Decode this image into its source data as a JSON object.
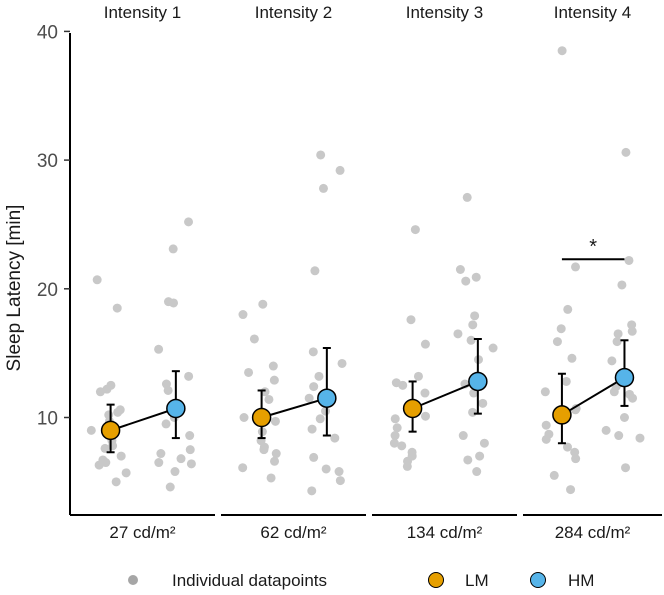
{
  "colors": {
    "lm": "#E69F00",
    "hm": "#56B4E9",
    "individual": "#C8C8C8",
    "legend_individual": "#A6A6A6",
    "line": "#000000"
  },
  "chart_data": {
    "type": "scatter",
    "ylabel": "Sleep Latency [min]",
    "ylim": [
      0,
      40
    ],
    "yticks": [
      10,
      20,
      30,
      40
    ],
    "grid": false,
    "legend_position": "bottom",
    "legend": {
      "individual_label": "Individual datapoints",
      "lm_label": "LM",
      "hm_label": "HM"
    },
    "panels": [
      {
        "title": "Intensity 1",
        "xlabel": "27 cd/m²",
        "lm": {
          "mean": 9.0,
          "lower": 7.3,
          "upper": 11.0
        },
        "hm": {
          "mean": 10.7,
          "lower": 8.4,
          "upper": 13.6
        },
        "significance": "",
        "individual_lm": [
          20.7,
          18.5,
          12.5,
          12.2,
          12.0,
          10.6,
          10.4,
          10.2,
          9.7,
          9.6,
          9.0,
          8.2,
          7.8,
          7.6,
          7.0,
          6.7,
          6.5,
          6.3,
          5.7,
          5.0
        ],
        "individual_hm": [
          25.2,
          23.1,
          19.0,
          18.9,
          15.3,
          13.2,
          12.6,
          12.1,
          11.0,
          10.5,
          10.0,
          9.5,
          8.6,
          7.5,
          7.2,
          6.8,
          6.5,
          6.4,
          5.8,
          4.6
        ]
      },
      {
        "title": "Intensity 2",
        "xlabel": "62 cd/m²",
        "lm": {
          "mean": 10.0,
          "lower": 8.4,
          "upper": 12.1
        },
        "hm": {
          "mean": 11.5,
          "lower": 8.6,
          "upper": 15.4
        },
        "significance": "",
        "individual_lm": [
          18.8,
          18.0,
          16.1,
          14.0,
          13.5,
          12.9,
          12.0,
          11.4,
          10.0,
          9.9,
          9.7,
          8.9,
          8.2,
          7.7,
          7.5,
          7.2,
          6.6,
          6.1,
          5.3
        ],
        "individual_hm": [
          30.4,
          29.2,
          27.8,
          21.4,
          15.1,
          14.2,
          13.2,
          12.4,
          11.8,
          11.5,
          10.5,
          9.9,
          9.1,
          8.4,
          6.9,
          6.0,
          5.8,
          5.1,
          4.3
        ]
      },
      {
        "title": "Intensity 3",
        "xlabel": "134 cd/m²",
        "lm": {
          "mean": 10.7,
          "lower": 8.9,
          "upper": 12.8
        },
        "hm": {
          "mean": 12.8,
          "lower": 10.3,
          "upper": 16.1
        },
        "significance": "",
        "individual_lm": [
          24.6,
          17.6,
          15.7,
          13.2,
          12.7,
          12.5,
          11.9,
          10.7,
          10.1,
          9.9,
          9.2,
          8.6,
          8.0,
          7.8,
          7.3,
          7.0,
          6.6,
          6.2
        ],
        "individual_hm": [
          27.1,
          21.5,
          20.9,
          20.6,
          17.9,
          17.2,
          16.5,
          16.0,
          15.4,
          14.5,
          12.6,
          11.9,
          11.1,
          10.4,
          8.6,
          8.0,
          7.0,
          6.7,
          5.8
        ]
      },
      {
        "title": "Intensity 4",
        "xlabel": "284 cd/m²",
        "lm": {
          "mean": 10.2,
          "lower": 8.0,
          "upper": 13.4
        },
        "hm": {
          "mean": 13.1,
          "lower": 10.9,
          "upper": 16.0
        },
        "significance": "*",
        "individual_lm": [
          38.5,
          21.7,
          18.4,
          16.9,
          15.9,
          14.6,
          12.8,
          12.0,
          10.7,
          10.6,
          10.1,
          9.4,
          8.7,
          8.3,
          7.7,
          7.3,
          6.8,
          5.5,
          4.4
        ],
        "individual_hm": [
          30.6,
          22.2,
          20.3,
          17.2,
          16.7,
          16.5,
          15.9,
          14.4,
          12.7,
          12.4,
          12.0,
          11.8,
          11.5,
          10.0,
          9.0,
          8.6,
          8.4,
          6.1
        ]
      }
    ]
  }
}
